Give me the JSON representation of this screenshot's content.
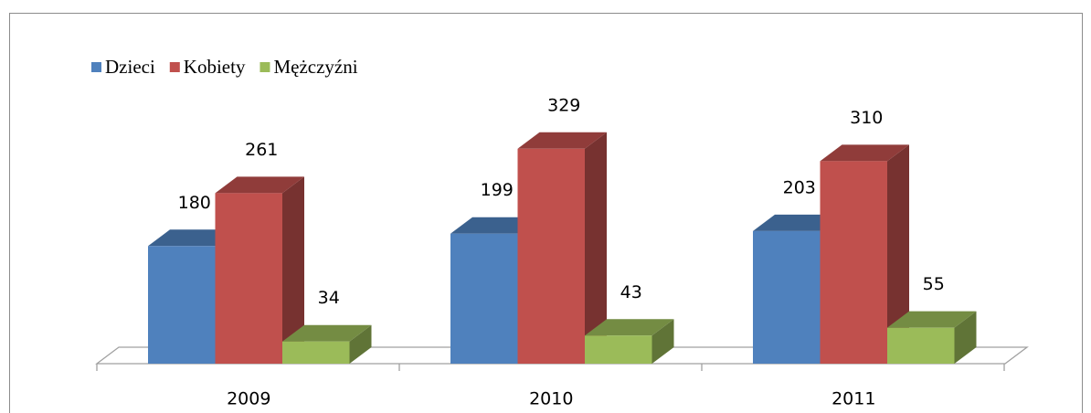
{
  "chart_data": {
    "type": "bar3d",
    "categories": [
      "2009",
      "2010",
      "2011"
    ],
    "series": [
      {
        "name": "Dzieci",
        "color": "#4f81bd",
        "values": [
          180,
          199,
          203
        ]
      },
      {
        "name": "Kobiety",
        "color": "#c0504d",
        "values": [
          261,
          329,
          310
        ]
      },
      {
        "name": "Mężczyźni",
        "color": "#9bbb59",
        "values": [
          34,
          43,
          55
        ]
      }
    ],
    "legend": "top-left"
  }
}
